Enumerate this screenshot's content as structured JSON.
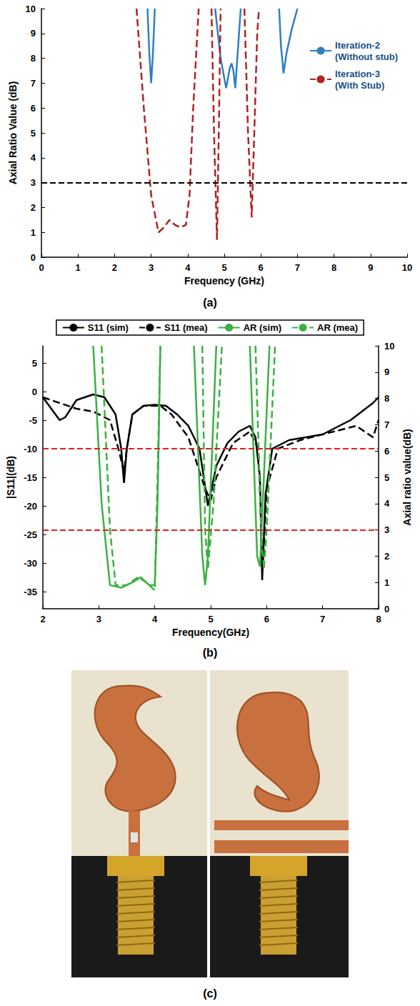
{
  "chart_data": [
    {
      "type": "line",
      "title": "(a)",
      "x_label": "Frequency (GHz)",
      "y_label": "Axial Ratio Value (dB)",
      "xlim": [
        0,
        10
      ],
      "xticks": [
        0,
        1,
        2,
        3,
        4,
        5,
        6,
        7,
        8,
        9,
        10
      ],
      "ylim": [
        0,
        10
      ],
      "yticks": [
        0,
        1,
        2,
        3,
        4,
        5,
        6,
        7,
        8,
        9,
        10
      ],
      "grid": false,
      "legend": "upper right",
      "reference_lines": [
        {
          "axis": "y",
          "value": 3,
          "color": "#000000"
        }
      ],
      "series": [
        {
          "name": "Iteration-2 (Without stub)",
          "color": "#2f7fc1",
          "line_style": "solid",
          "x": [
            2.9,
            2.95,
            3.0,
            3.05,
            3.1,
            null,
            4.75,
            4.9,
            5.05,
            5.15,
            5.2,
            5.25,
            5.3,
            5.38,
            5.45,
            null,
            6.5,
            6.55,
            6.62,
            6.7,
            6.85,
            7.0
          ],
          "values": [
            10,
            8.2,
            7.0,
            8.2,
            10,
            null,
            10,
            8,
            6.8,
            7.6,
            7.8,
            7.5,
            6.8,
            8.5,
            10,
            null,
            10,
            8.5,
            7.4,
            8.2,
            9.2,
            10
          ]
        },
        {
          "name": "Iteration-3 (With Stub)",
          "color": "#b22222",
          "line_style": "dashed",
          "x": [
            2.6,
            2.8,
            3.0,
            3.2,
            3.35,
            3.5,
            3.65,
            3.8,
            3.95,
            4.05,
            4.15,
            4.3,
            null,
            4.65,
            4.72,
            4.8,
            4.85,
            4.9,
            null,
            5.55,
            5.65,
            5.75,
            5.82,
            5.9,
            5.95
          ],
          "values": [
            10,
            6,
            2.5,
            1.0,
            1.2,
            1.5,
            1.3,
            1.2,
            1.3,
            2.5,
            6,
            10,
            null,
            10,
            5,
            0.7,
            5,
            10,
            null,
            10,
            5,
            1.6,
            5,
            9,
            10
          ]
        }
      ]
    },
    {
      "type": "line",
      "title": "(b)",
      "x_label": "Frequency(GHz)",
      "y_label": "|S11|(dB)",
      "y2_label": "Axial ratio value(dB)",
      "xlim": [
        2,
        8
      ],
      "xticks": [
        2,
        3,
        4,
        5,
        6,
        7,
        8
      ],
      "ylim": [
        -38,
        8
      ],
      "yticks": [
        -35,
        -30,
        -25,
        -20,
        -15,
        -10,
        -5,
        0,
        5
      ],
      "y2lim": [
        0,
        10
      ],
      "y2ticks": [
        0,
        1,
        2,
        3,
        4,
        5,
        6,
        7,
        8,
        9,
        10
      ],
      "grid": false,
      "legend": "top",
      "reference_lines": [
        {
          "axis": "y",
          "value": -10,
          "color": "#e02020"
        },
        {
          "axis": "y2",
          "value": 3,
          "color": "#e02020"
        }
      ],
      "series": [
        {
          "name": "S11 (sim)",
          "color": "#000000",
          "line_style": "solid",
          "axis": "y",
          "x": [
            2.0,
            2.3,
            2.4,
            2.6,
            2.9,
            3.1,
            3.3,
            3.4,
            3.45,
            3.5,
            3.6,
            3.8,
            4.0,
            4.2,
            4.4,
            4.6,
            4.8,
            4.95,
            5.1,
            5.3,
            5.5,
            5.7,
            5.8,
            5.88,
            5.92,
            5.98,
            6.1,
            6.4,
            7.0,
            7.5,
            7.9,
            8.0
          ],
          "values": [
            -1,
            -5,
            -4.5,
            -1.5,
            -0.5,
            -1,
            -4,
            -10,
            -16,
            -10,
            -4,
            -2.5,
            -2.3,
            -2.5,
            -4,
            -6,
            -10,
            -20,
            -13,
            -9,
            -7,
            -6,
            -8,
            -15,
            -33,
            -18,
            -10,
            -8.5,
            -7.5,
            -5,
            -2,
            -1
          ]
        },
        {
          "name": "S11 (mea)",
          "color": "#000000",
          "line_style": "dashed",
          "axis": "y",
          "x": [
            2.0,
            2.3,
            2.6,
            2.9,
            3.2,
            3.35,
            3.45,
            3.5,
            3.6,
            3.8,
            4.1,
            4.3,
            4.6,
            4.9,
            5.0,
            5.1,
            5.4,
            5.7,
            5.85,
            5.93,
            6.0,
            6.2,
            6.6,
            7.2,
            7.6,
            7.9,
            8.0
          ],
          "values": [
            -1,
            -2,
            -3,
            -3.5,
            -5,
            -10,
            -14,
            -10,
            -4,
            -2.5,
            -2.5,
            -4,
            -8,
            -17,
            -19,
            -15,
            -9,
            -7,
            -10,
            -31,
            -17,
            -10,
            -8.5,
            -7,
            -6,
            -8,
            -5
          ]
        },
        {
          "name": "AR (sim)",
          "color": "#3cb043",
          "line_style": "solid",
          "axis": "y2",
          "x": [
            2.9,
            3.05,
            3.2,
            3.4,
            3.6,
            3.75,
            3.9,
            4.0,
            4.05,
            4.1,
            null,
            4.7,
            4.85,
            4.9,
            4.95,
            5.1,
            null,
            5.7,
            5.83,
            5.88,
            5.95,
            6.05
          ],
          "values": [
            10,
            4,
            0.9,
            0.8,
            1.0,
            1.2,
            0.9,
            0.9,
            4,
            10,
            null,
            10,
            2,
            0.9,
            2,
            10,
            null,
            10,
            2,
            1.6,
            5,
            10
          ]
        },
        {
          "name": "AR (mea)",
          "color": "#3cb043",
          "line_style": "dashed",
          "axis": "y2",
          "x": [
            3.05,
            3.2,
            3.3,
            3.5,
            3.7,
            3.85,
            4.0,
            4.05,
            4.1,
            null,
            4.85,
            4.9,
            4.95,
            5.05,
            5.2,
            null,
            5.8,
            5.9,
            5.95,
            6.0,
            6.15
          ],
          "values": [
            10,
            3,
            0.9,
            0.9,
            1.2,
            1.0,
            0.7,
            5,
            10,
            null,
            10,
            3,
            1.5,
            4,
            10,
            null,
            10,
            3,
            1.5,
            3,
            10
          ]
        }
      ]
    }
  ],
  "photo": {
    "caption": "(c)"
  }
}
